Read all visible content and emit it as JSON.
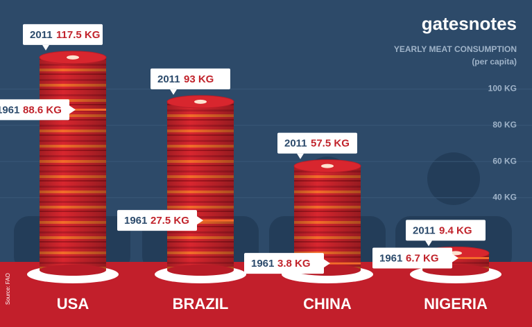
{
  "chart_data": {
    "type": "bar",
    "brand": "gatesnotes",
    "title": "YEARLY MEAT CONSUMPTION",
    "subtitle": "(per capita)",
    "source": "Source: FAO",
    "categories": [
      "USA",
      "BRAZIL",
      "CHINA",
      "NIGERIA"
    ],
    "series": [
      {
        "name": "2011",
        "color": "#d8262e",
        "values": [
          117.5,
          93,
          57.5,
          9.4
        ],
        "value_labels": [
          "117.5 KG",
          "93 KG",
          "57.5 KG",
          "9.4 KG"
        ]
      },
      {
        "name": "1961",
        "color": "#f36b2a",
        "values": [
          88.6,
          27.5,
          3.8,
          6.7
        ],
        "value_labels": [
          "88.6 KG",
          "27.5 KG",
          "3.8 KG",
          "6.7 KG"
        ]
      }
    ],
    "ylim": [
      0,
      140
    ],
    "yticks": [
      {
        "value": 40,
        "label": "40 KG"
      },
      {
        "value": 60,
        "label": "60 KG"
      },
      {
        "value": 80,
        "label": "80 KG"
      },
      {
        "value": 100,
        "label": "100 KG"
      }
    ],
    "grid": true
  }
}
